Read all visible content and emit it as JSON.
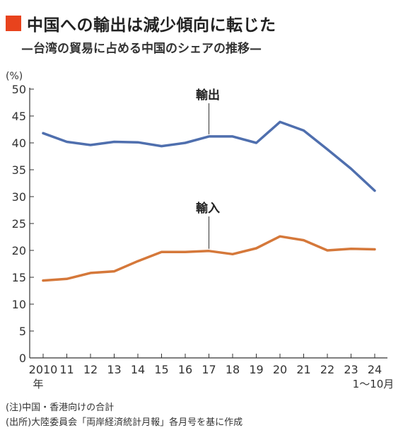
{
  "title": "中国への輸出は減少傾向に転じた",
  "subtitle": "—台湾の貿易に占める中国のシェアの推移—",
  "colors": {
    "accent": "#e8431d",
    "export": "#4f6fae",
    "import": "#d5783a",
    "axis": "#333333"
  },
  "notes": {
    "note1": "(注)中国・香港向けの合計",
    "note2": "(出所)大陸委員会「両岸経済統計月報」各月号を基に作成"
  },
  "chart_data": {
    "type": "line",
    "ylabel": "(%)",
    "ylim": [
      0,
      50
    ],
    "yticks": [
      "0",
      "5",
      "10",
      "15",
      "20",
      "25",
      "30",
      "35",
      "40",
      "45",
      "50"
    ],
    "categories": [
      "2010",
      "11",
      "12",
      "13",
      "14",
      "15",
      "16",
      "17",
      "18",
      "19",
      "20",
      "21",
      "22",
      "23",
      "24"
    ],
    "x_sublabels": {
      "first": "年",
      "last": "1〜10月"
    },
    "grid": false,
    "series": [
      {
        "name": "輸出",
        "color": "#4f6fae",
        "values": [
          41.8,
          40.2,
          39.6,
          40.2,
          40.1,
          39.4,
          40.0,
          41.2,
          41.2,
          40.0,
          43.9,
          42.3,
          38.8,
          35.2,
          31.1
        ]
      },
      {
        "name": "輸入",
        "color": "#d5783a",
        "values": [
          14.4,
          14.7,
          15.8,
          16.1,
          18.0,
          19.7,
          19.7,
          19.9,
          19.3,
          20.4,
          22.6,
          21.9,
          20.0,
          20.3,
          20.2
        ]
      }
    ]
  }
}
